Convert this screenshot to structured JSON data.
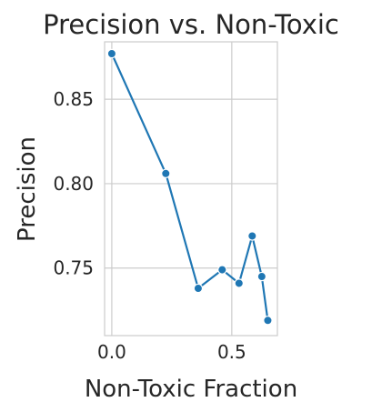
{
  "chart_data": {
    "type": "line",
    "title": "Precision vs. Non-Toxic",
    "xlabel": "Non-Toxic Fraction",
    "ylabel": "Precision",
    "x_ticks": [
      0.0,
      0.5
    ],
    "x_tick_labels": [
      "0.0",
      "0.5"
    ],
    "y_ticks": [
      0.75,
      0.8,
      0.85
    ],
    "y_tick_labels": [
      "0.75",
      "0.80",
      "0.85"
    ],
    "xlim": [
      -0.03,
      0.69
    ],
    "ylim": [
      0.71,
      0.884
    ],
    "grid": true,
    "series": [
      {
        "color": "#1f77b4",
        "marker": "circle",
        "x": [
          0.0,
          0.225,
          0.36,
          0.46,
          0.53,
          0.585,
          0.625,
          0.65
        ],
        "y": [
          0.877,
          0.806,
          0.738,
          0.749,
          0.741,
          0.769,
          0.745,
          0.719
        ]
      }
    ]
  }
}
